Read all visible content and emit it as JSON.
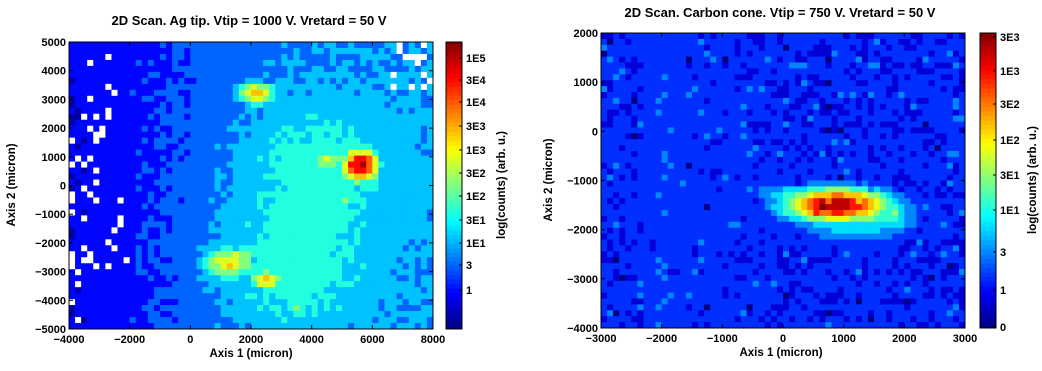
{
  "colors": {
    "colormap": [
      "#000080",
      "#0000ff",
      "#0080ff",
      "#00ffff",
      "#80ff80",
      "#ffff00",
      "#ff8000",
      "#ff0000",
      "#800000"
    ],
    "frame": "#000000",
    "background": "#ffffff"
  },
  "chart_data": [
    {
      "type": "heatmap",
      "title": "2D Scan. Ag tip. Vtip = 1000 V. Vretard = 50 V",
      "xlabel": "Axis 1 (micron)",
      "ylabel": "Axis 2 (micron)",
      "xlim": [
        -4000,
        8000
      ],
      "ylim": [
        -5000,
        5000
      ],
      "xticks": [
        -4000,
        -2000,
        0,
        2000,
        4000,
        6000,
        8000
      ],
      "xtick_labels": [
        "−4000",
        "−2000",
        "0",
        "2000",
        "4000",
        "6000",
        "8000"
      ],
      "yticks": [
        -5000,
        -4000,
        -3000,
        -2000,
        -1000,
        0,
        1000,
        2000,
        3000,
        4000,
        5000
      ],
      "ytick_labels": [
        "−5000",
        "−4000",
        "−3000",
        "−2000",
        "−1000",
        "0",
        "1000",
        "2000",
        "3000",
        "4000",
        "5000"
      ],
      "colorbar": {
        "label": "log(counts) (arb. u.)",
        "scale": "log",
        "ticks": [
          "1E5",
          "3E4",
          "1E4",
          "3E3",
          "1E3",
          "3E2",
          "1E2",
          "3E1",
          "1E1",
          "3",
          "1"
        ]
      },
      "features": [
        {
          "x": 2200,
          "y": 3200,
          "peak_log10": 3.6,
          "sx": 550,
          "sy": 330
        },
        {
          "x": 5600,
          "y": 700,
          "peak_log10": 5.0,
          "sx": 520,
          "sy": 480
        },
        {
          "x": 4500,
          "y": 900,
          "peak_log10": 2.7,
          "sx": 750,
          "sy": 400
        },
        {
          "x": 3100,
          "y": 700,
          "peak_log10": 2.4,
          "sx": 350,
          "sy": 400
        },
        {
          "x": 5100,
          "y": -450,
          "peak_log10": 2.6,
          "sx": 320,
          "sy": 300
        },
        {
          "x": 1300,
          "y": -2700,
          "peak_log10": 3.3,
          "sx": 750,
          "sy": 500
        },
        {
          "x": 2500,
          "y": -3300,
          "peak_log10": 3.6,
          "sx": 420,
          "sy": 300
        },
        {
          "x": 3500,
          "y": -4300,
          "peak_log10": 2.5,
          "sx": 300,
          "sy": 350
        },
        {
          "x": 2000,
          "y": -2300,
          "peak_log10": 2.3,
          "sx": 700,
          "sy": 350
        }
      ]
    },
    {
      "type": "heatmap",
      "title": "2D Scan. Carbon cone. Vtip = 750 V. Vretard = 50 V",
      "xlabel": "Axis 1 (micron)",
      "ylabel": "Axis 2 (micron)",
      "xlim": [
        -3000,
        3000
      ],
      "ylim": [
        -4000,
        2000
      ],
      "xticks": [
        -3000,
        -2000,
        -1000,
        0,
        1000,
        2000,
        3000
      ],
      "xtick_labels": [
        "−3000",
        "−2000",
        "−1000",
        "0",
        "1000",
        "2000",
        "3000"
      ],
      "yticks": [
        -4000,
        -3000,
        -2000,
        -1000,
        0,
        1000,
        2000
      ],
      "ytick_labels": [
        "−4000",
        "−3000",
        "−2000",
        "−1000",
        "0",
        "1000",
        "2000"
      ],
      "colorbar": {
        "label": "log(counts) (arb. u.)",
        "scale": "log",
        "ticks": [
          "3E3",
          "1E3",
          "3E2",
          "1E2",
          "3E1",
          "1E1",
          "3",
          "1",
          "0"
        ]
      },
      "features": [
        {
          "x": 900,
          "y": -1500,
          "peak_log10": 3.4,
          "sx": 700,
          "sy": 280
        },
        {
          "x": 1200,
          "y": -1700,
          "peak_log10": 1.5,
          "sx": 900,
          "sy": 450
        },
        {
          "x": 1850,
          "y": -1650,
          "peak_log10": 1.7,
          "sx": 150,
          "sy": 250
        },
        {
          "x": -1950,
          "y": -1000,
          "peak_log10": 0.35,
          "sx": 220,
          "sy": 3000
        }
      ]
    }
  ]
}
